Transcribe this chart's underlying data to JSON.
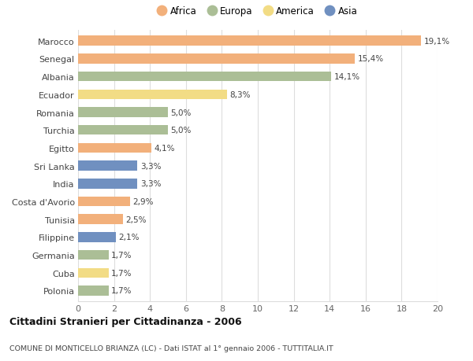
{
  "countries": [
    "Marocco",
    "Senegal",
    "Albania",
    "Ecuador",
    "Romania",
    "Turchia",
    "Egitto",
    "Sri Lanka",
    "India",
    "Costa d'Avorio",
    "Tunisia",
    "Filippine",
    "Germania",
    "Cuba",
    "Polonia"
  ],
  "values": [
    19.1,
    15.4,
    14.1,
    8.3,
    5.0,
    5.0,
    4.1,
    3.3,
    3.3,
    2.9,
    2.5,
    2.1,
    1.7,
    1.7,
    1.7
  ],
  "labels": [
    "19,1%",
    "15,4%",
    "14,1%",
    "8,3%",
    "5,0%",
    "5,0%",
    "4,1%",
    "3,3%",
    "3,3%",
    "2,9%",
    "2,5%",
    "2,1%",
    "1,7%",
    "1,7%",
    "1,7%"
  ],
  "categories": [
    "Africa",
    "Africa",
    "Europa",
    "America",
    "Europa",
    "Europa",
    "Africa",
    "Asia",
    "Asia",
    "Africa",
    "Africa",
    "Asia",
    "Europa",
    "America",
    "Europa"
  ],
  "colors": {
    "Africa": "#F2B07B",
    "Europa": "#ABBE96",
    "America": "#F2DC85",
    "Asia": "#7090C0"
  },
  "xlim": [
    0,
    20
  ],
  "xticks": [
    0,
    2,
    4,
    6,
    8,
    10,
    12,
    14,
    16,
    18,
    20
  ],
  "title1": "Cittadini Stranieri per Cittadinanza - 2006",
  "title2": "COMUNE DI MONTICELLO BRIANZA (LC) - Dati ISTAT al 1° gennaio 2006 - TUTTITALIA.IT",
  "background_color": "#ffffff",
  "grid_color": "#dddddd",
  "bar_height": 0.55,
  "legend_order": [
    "Africa",
    "Europa",
    "America",
    "Asia"
  ]
}
